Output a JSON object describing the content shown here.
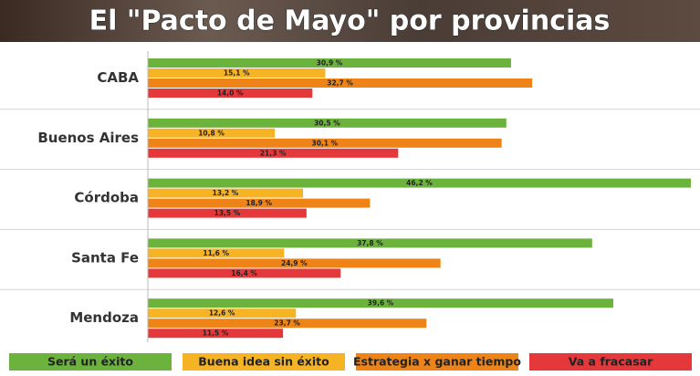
{
  "chart_data": {
    "type": "bar",
    "orientation": "horizontal",
    "title": "El \"Pacto de Mayo\" por provincias",
    "categories": [
      "CABA",
      "Buenos Aires",
      "Córdoba",
      "Santa Fe",
      "Mendoza"
    ],
    "series": [
      {
        "name": "Será un éxito",
        "color": "#6cb33e",
        "values": [
          30.9,
          30.5,
          46.2,
          37.8,
          39.6
        ],
        "value_labels": [
          "30,9 %",
          "30,5 %",
          "46,2 %",
          "37,8 %",
          "39,6 %"
        ]
      },
      {
        "name": "Buena idea sin éxito",
        "color": "#f6b425",
        "values": [
          15.1,
          10.8,
          13.2,
          11.6,
          12.6
        ],
        "value_labels": [
          "15,1 %",
          "10,8 %",
          "13,2 %",
          "11,6 %",
          "12,6 %"
        ]
      },
      {
        "name": "Estrategia x ganar tiempo",
        "color": "#ee8417",
        "values": [
          32.7,
          30.1,
          18.9,
          24.9,
          23.7
        ],
        "value_labels": [
          "32,7 %",
          "30,1 %",
          "18,9 %",
          "24,9 %",
          "23,7 %"
        ]
      },
      {
        "name": "Va a fracasar",
        "color": "#e5383b",
        "values": [
          14.0,
          21.3,
          13.5,
          16.4,
          11.5
        ],
        "value_labels": [
          "14,0 %",
          "21,3 %",
          "13,5 %",
          "16,4 %",
          "11,5 %"
        ]
      }
    ]
  }
}
